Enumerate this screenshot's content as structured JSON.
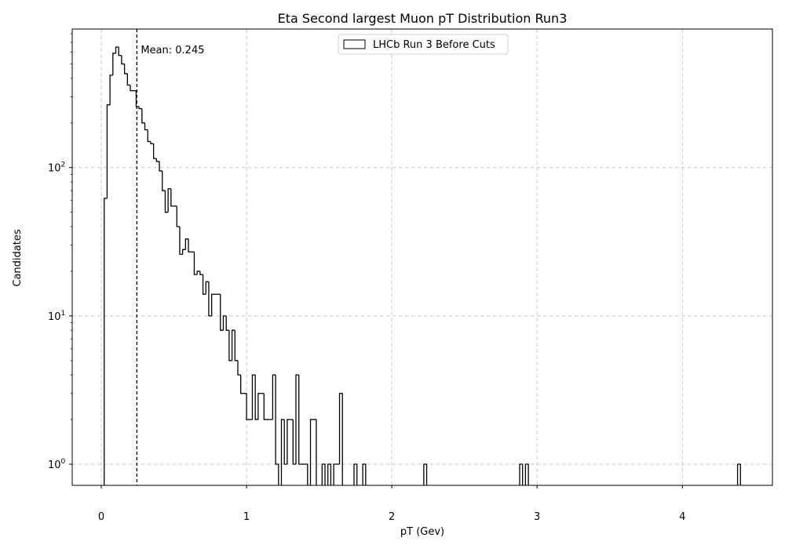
{
  "chart_data": {
    "type": "histogram",
    "title": "Eta Second largest Muon pT Distribution Run3",
    "xlabel": "pT (Gev)",
    "ylabel": "Candidates",
    "yscale": "log",
    "xlim": [
      -0.2,
      4.62
    ],
    "ylim": [
      0.72,
      860
    ],
    "grid": true,
    "legend_position": "top-center",
    "x_ticks": [
      {
        "value": 0,
        "label": "0"
      },
      {
        "value": 1,
        "label": "1"
      },
      {
        "value": 2,
        "label": "2"
      },
      {
        "value": 3,
        "label": "3"
      },
      {
        "value": 4,
        "label": "4"
      }
    ],
    "y_ticks": [
      {
        "value": 1,
        "base": "10",
        "exp": "0"
      },
      {
        "value": 10,
        "base": "10",
        "exp": "1"
      },
      {
        "value": 100,
        "base": "10",
        "exp": "2"
      }
    ],
    "mean": {
      "value": 0.245,
      "label": "Mean: 0.245"
    },
    "bin_edges_range": [
      0.02,
      4.42
    ],
    "bin_count": 220,
    "series": [
      {
        "name": "LHCb Run 3 Before Cuts",
        "bins": [
          [
            0.02,
            62
          ],
          [
            0.04,
            265
          ],
          [
            0.06,
            420
          ],
          [
            0.08,
            590
          ],
          [
            0.1,
            650
          ],
          [
            0.12,
            570
          ],
          [
            0.14,
            500
          ],
          [
            0.16,
            430
          ],
          [
            0.18,
            360
          ],
          [
            0.2,
            330
          ],
          [
            0.22,
            330
          ],
          [
            0.24,
            258
          ],
          [
            0.26,
            250
          ],
          [
            0.28,
            200
          ],
          [
            0.3,
            180
          ],
          [
            0.32,
            150
          ],
          [
            0.34,
            145
          ],
          [
            0.36,
            115
          ],
          [
            0.38,
            110
          ],
          [
            0.4,
            95
          ],
          [
            0.42,
            70
          ],
          [
            0.44,
            50
          ],
          [
            0.46,
            72
          ],
          [
            0.48,
            55
          ],
          [
            0.5,
            55
          ],
          [
            0.52,
            40
          ],
          [
            0.54,
            26
          ],
          [
            0.56,
            28
          ],
          [
            0.58,
            33
          ],
          [
            0.6,
            27
          ],
          [
            0.62,
            27
          ],
          [
            0.64,
            19
          ],
          [
            0.66,
            20
          ],
          [
            0.68,
            19
          ],
          [
            0.7,
            14
          ],
          [
            0.72,
            17
          ],
          [
            0.74,
            10
          ],
          [
            0.76,
            14
          ],
          [
            0.78,
            14
          ],
          [
            0.8,
            14
          ],
          [
            0.82,
            8
          ],
          [
            0.84,
            10
          ],
          [
            0.86,
            8
          ],
          [
            0.88,
            5
          ],
          [
            0.9,
            8
          ],
          [
            0.92,
            5
          ],
          [
            0.94,
            4
          ],
          [
            0.96,
            3
          ],
          [
            0.98,
            3
          ],
          [
            1.0,
            2
          ],
          [
            1.02,
            2
          ],
          [
            1.04,
            4
          ],
          [
            1.06,
            2
          ],
          [
            1.08,
            3
          ],
          [
            1.1,
            3
          ],
          [
            1.12,
            2
          ],
          [
            1.14,
            2
          ],
          [
            1.16,
            2
          ],
          [
            1.18,
            4
          ],
          [
            1.2,
            1
          ],
          [
            1.22,
            0
          ],
          [
            1.24,
            2
          ],
          [
            1.26,
            1
          ],
          [
            1.28,
            2
          ],
          [
            1.3,
            2
          ],
          [
            1.32,
            1
          ],
          [
            1.34,
            4
          ],
          [
            1.36,
            1
          ],
          [
            1.38,
            1
          ],
          [
            1.4,
            1
          ],
          [
            1.42,
            0
          ],
          [
            1.44,
            2
          ],
          [
            1.46,
            2
          ],
          [
            1.48,
            0
          ],
          [
            1.5,
            0
          ],
          [
            1.52,
            1
          ],
          [
            1.54,
            0
          ],
          [
            1.56,
            1
          ],
          [
            1.58,
            0
          ],
          [
            1.6,
            1
          ],
          [
            1.62,
            1
          ],
          [
            1.64,
            3
          ],
          [
            1.66,
            0
          ],
          [
            1.68,
            0
          ],
          [
            1.7,
            0
          ],
          [
            1.72,
            0
          ],
          [
            1.74,
            1
          ],
          [
            1.76,
            0
          ],
          [
            1.78,
            0
          ],
          [
            1.8,
            1
          ],
          [
            2.22,
            1
          ],
          [
            2.88,
            1
          ],
          [
            2.92,
            1
          ],
          [
            4.38,
            1
          ]
        ]
      }
    ]
  }
}
